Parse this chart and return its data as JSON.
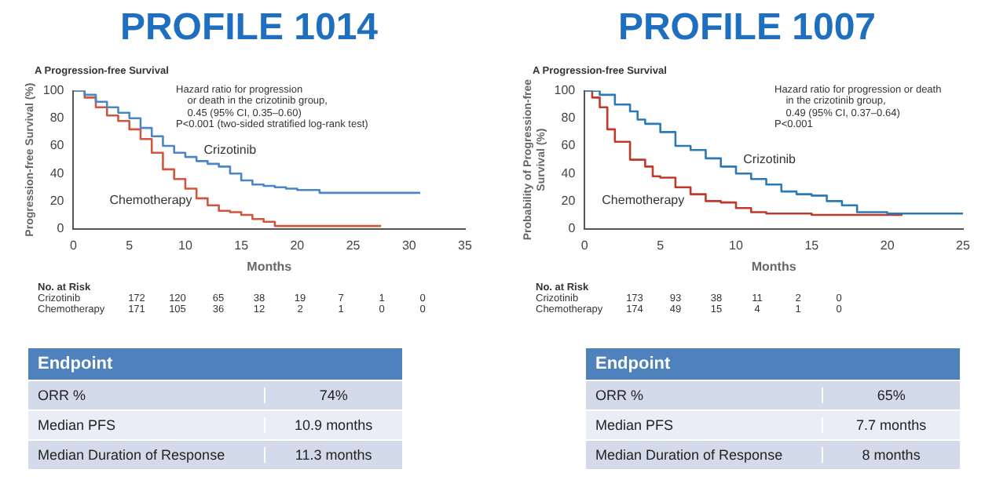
{
  "chart_data": [
    {
      "type": "step",
      "title": "PROFILE 1014",
      "subtitle": "A  Progression-free Survival",
      "xlabel": "Months",
      "ylabel": "Progression-free Survival (%)",
      "xlim": [
        0,
        35
      ],
      "xticks": [
        0,
        5,
        10,
        15,
        20,
        25,
        30,
        35
      ],
      "ylim": [
        0,
        100
      ],
      "yticks": [
        0,
        20,
        40,
        60,
        80,
        100
      ],
      "grid": false,
      "legend": false,
      "series": [
        {
          "name": "Crizotinib",
          "color": "#4a86c5",
          "x": [
            0,
            1,
            2,
            3,
            4,
            5,
            6,
            7,
            8,
            9,
            10,
            11,
            12,
            13,
            14,
            15,
            16,
            17,
            18,
            19,
            20,
            22,
            31
          ],
          "values": [
            100,
            97,
            92,
            88,
            84,
            80,
            73,
            67,
            60,
            55,
            52,
            49,
            47,
            45,
            40,
            35,
            32,
            31,
            30,
            29,
            28,
            26,
            26
          ]
        },
        {
          "name": "Chemotherapy",
          "color": "#d2553f",
          "x": [
            0,
            1,
            2,
            3,
            4,
            5,
            6,
            7,
            8,
            9,
            10,
            11,
            12,
            13,
            14,
            15,
            16,
            17,
            18,
            27.5
          ],
          "values": [
            100,
            95,
            88,
            82,
            78,
            72,
            65,
            55,
            43,
            36,
            29,
            22,
            17,
            13,
            12,
            10,
            7,
            5,
            2,
            2
          ]
        }
      ],
      "annotations": [
        "Hazard ratio for progression\n    or death in the crizotinib group,\n    0.45 (95% CI, 0.35–0.60)\nP<0.001 (two-sided stratified log-rank test)",
        "No. at Risk",
        "Crizotinib\t172\t120\t65\t38\t19\t7\t1\t0",
        "Chemotherapy\t171\t105\t36\t12\t2\t1\t0\t0",
        "Endpoint\t",
        "ORR %\t74%",
        "Median PFS\t10.9 months",
        "Median Duration of Response\t11.3 months"
      ]
    },
    {
      "type": "step",
      "title": "PROFILE 1007",
      "subtitle": "A  Progression-free Survival",
      "xlabel": "Months",
      "ylabel": "Probability of Progression-free Survival (%)",
      "xlim": [
        0,
        25
      ],
      "xticks": [
        0,
        5,
        10,
        15,
        20,
        25
      ],
      "ylim": [
        0,
        100
      ],
      "yticks": [
        0,
        20,
        40,
        60,
        80,
        100
      ],
      "grid": false,
      "legend": false,
      "series": [
        {
          "name": "Crizotinib",
          "color": "#2a7ab8",
          "x": [
            0,
            1,
            2,
            3,
            3.5,
            4,
            5,
            6,
            7,
            8,
            9,
            10,
            11,
            12,
            13,
            14,
            15,
            16,
            17,
            18,
            20,
            25
          ],
          "values": [
            100,
            97,
            90,
            85,
            79,
            76,
            70,
            60,
            57,
            51,
            45,
            40,
            36,
            32,
            27,
            25,
            24,
            20,
            17,
            12,
            11,
            11
          ]
        },
        {
          "name": "Chemotherapy",
          "color": "#c0392b",
          "x": [
            0,
            0.5,
            1,
            1.5,
            2,
            3,
            4,
            4.5,
            5,
            6,
            7,
            8,
            9,
            10,
            11,
            12,
            13,
            15,
            21
          ],
          "values": [
            100,
            95,
            88,
            72,
            63,
            50,
            45,
            38,
            37,
            30,
            25,
            20,
            19,
            15,
            12,
            11,
            11,
            10,
            10
          ]
        }
      ],
      "annotations": [
        "Hazard ratio for progression or death\n    in the crizotinib group,\n    0.49 (95% CI, 0.37–0.64)\nP<0.001",
        "No. at Risk",
        "Crizotinib\t173\t93\t38\t11\t2\t0",
        "Chemotherapy\t174\t49\t15\t4\t1\t0",
        "Endpoint\t",
        "ORR %\t65%",
        "Median PFS\t7.7 months",
        "Median Duration of Response\t8 months"
      ]
    }
  ]
}
